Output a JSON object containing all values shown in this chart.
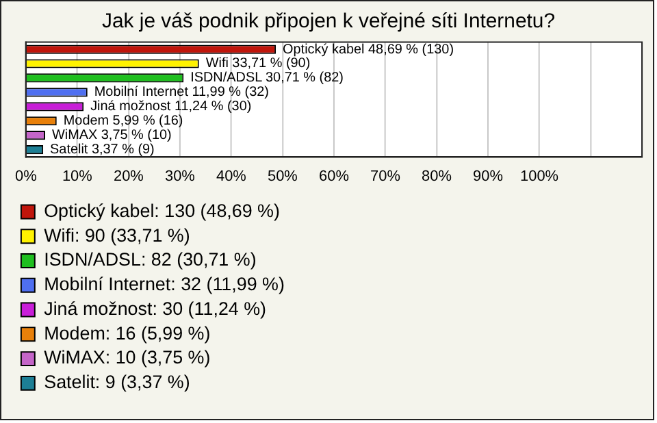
{
  "chart_data": {
    "type": "bar",
    "orientation": "horizontal",
    "title": "Jak je váš podnik připojen k veřejné síti Internetu?",
    "categories": [
      null,
      null,
      null,
      null,
      null,
      null,
      null,
      null
    ],
    "series": [
      {
        "name": "Optický kabel: 130 (48,69 %)",
        "color": "#c0150b",
        "values": [
          48.69,
          null,
          null,
          null,
          null,
          null,
          null,
          null
        ],
        "value_labels": [
          "Optický kabel 48,69 % (130)",
          null,
          null,
          null,
          null,
          null,
          null,
          null
        ]
      },
      {
        "name": "Wifi: 90 (33,71 %)",
        "color": "#fff200",
        "values": [
          null,
          33.71,
          null,
          null,
          null,
          null,
          null,
          null
        ],
        "value_labels": [
          null,
          "Wifi 33,71 % (90)",
          null,
          null,
          null,
          null,
          null,
          null
        ]
      },
      {
        "name": "ISDN/ADSL: 82 (30,71 %)",
        "color": "#1fbf1f",
        "values": [
          null,
          null,
          30.71,
          null,
          null,
          null,
          null,
          null
        ],
        "value_labels": [
          null,
          null,
          "ISDN/ADSL 30,71 % (82)",
          null,
          null,
          null,
          null,
          null
        ]
      },
      {
        "name": "Mobilní Internet: 32 (11,99 %)",
        "color": "#4f6ff0",
        "values": [
          null,
          null,
          null,
          11.99,
          null,
          null,
          null,
          null
        ],
        "value_labels": [
          null,
          null,
          null,
          "Mobilní Internet 11,99 % (32)",
          null,
          null,
          null,
          null
        ]
      },
      {
        "name": "Jiná možnost: 30 (11,24 %)",
        "color": "#c81ed8",
        "values": [
          null,
          null,
          null,
          null,
          11.24,
          null,
          null,
          null
        ],
        "value_labels": [
          null,
          null,
          null,
          null,
          "Jiná možnost 11,24 % (30)",
          null,
          null,
          null
        ]
      },
      {
        "name": "Modem: 16 (5,99 %)",
        "color": "#e8800a",
        "values": [
          null,
          null,
          null,
          null,
          null,
          5.99,
          null,
          null
        ],
        "value_labels": [
          null,
          null,
          null,
          null,
          null,
          "Modem 5,99 % (16)",
          null,
          null
        ]
      },
      {
        "name": "WiMAX: 10 (3,75 %)",
        "color": "#c465c8",
        "values": [
          null,
          null,
          null,
          null,
          null,
          null,
          3.75,
          null
        ],
        "value_labels": [
          null,
          null,
          null,
          null,
          null,
          null,
          "WiMAX 3,75 % (10)",
          null
        ]
      },
      {
        "name": "Satelit: 9 (3,37 %)",
        "color": "#1d7f95",
        "values": [
          null,
          null,
          null,
          null,
          null,
          null,
          null,
          3.37
        ],
        "value_labels": [
          null,
          null,
          null,
          null,
          null,
          null,
          null,
          "Satelit 3,37 % (9)"
        ]
      }
    ],
    "xlim": [
      0,
      120
    ],
    "xticks": [
      {
        "value": 0,
        "label": "0%"
      },
      {
        "value": 10,
        "label": "10%"
      },
      {
        "value": 20,
        "label": "20%"
      },
      {
        "value": 30,
        "label": "30%"
      },
      {
        "value": 40,
        "label": "40%"
      },
      {
        "value": 50,
        "label": "50%"
      },
      {
        "value": 60,
        "label": "60%"
      },
      {
        "value": 70,
        "label": "70%"
      },
      {
        "value": 80,
        "label": "80%"
      },
      {
        "value": 90,
        "label": "90%"
      },
      {
        "value": 100,
        "label": "100%"
      },
      {
        "value": 110,
        "label": null
      },
      {
        "value": 120,
        "label": null
      }
    ],
    "grid": "x",
    "legend": "bottom"
  }
}
